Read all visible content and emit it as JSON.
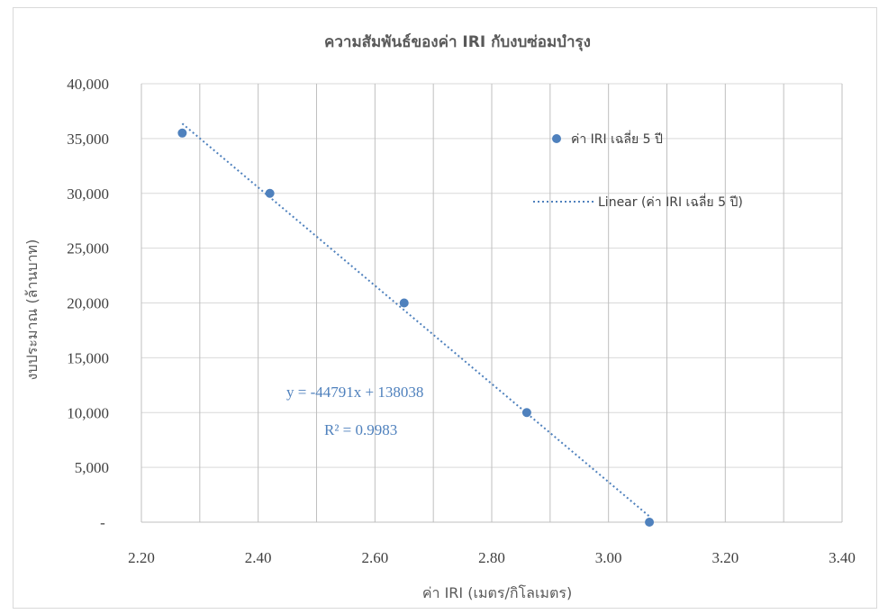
{
  "chart_data": {
    "type": "scatter",
    "title": "ความสัมพันธ์ของค่า IRI กับงบซ่อมบำรุง",
    "xlabel": "ค่า IRI (เมตร/กิโลเมตร)",
    "ylabel": "งบประมาณ (ล้านบาท)",
    "xlim": [
      2.2,
      3.4
    ],
    "ylim": [
      0,
      40000
    ],
    "x_ticks": [
      "2.20",
      "2.40",
      "2.60",
      "2.80",
      "3.00",
      "3.20",
      "3.40"
    ],
    "y_ticks": [
      "-",
      "5,000",
      "10,000",
      "15,000",
      "20,000",
      "25,000",
      "30,000",
      "35,000",
      "40,000"
    ],
    "grid": true,
    "legend_position": "right",
    "series": [
      {
        "name": "ค่า IRI เฉลี่ย 5 ปี",
        "x": [
          2.27,
          2.42,
          2.65,
          2.86,
          3.07
        ],
        "y": [
          35500,
          30000,
          20000,
          10000,
          0
        ],
        "color": "#4f81bd"
      }
    ],
    "trendline": {
      "name": "Linear (ค่า IRI เฉลี่ย 5 ปี)",
      "slope": -44791,
      "intercept": 138038,
      "x_range": [
        2.27,
        3.07
      ],
      "equation": "y = -44791x + 138038",
      "r2": "R² = 0.9983",
      "color": "#4f81bd"
    }
  }
}
